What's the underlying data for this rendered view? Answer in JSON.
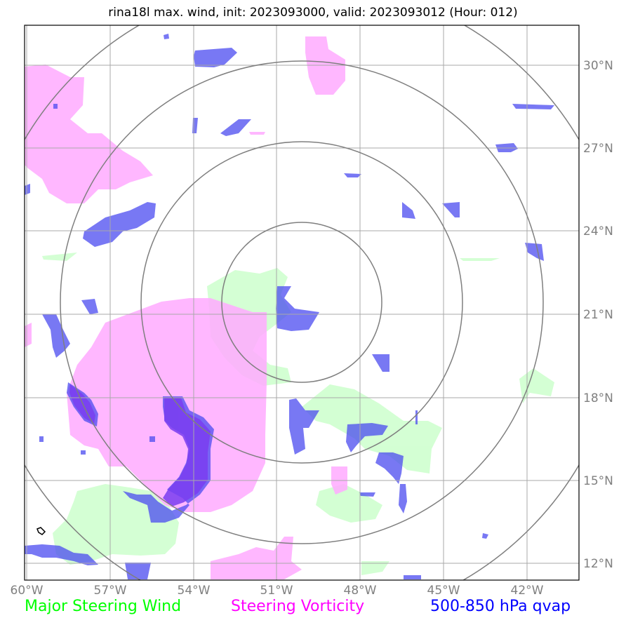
{
  "title": "rina18l max. wind, init: 2023093000, valid: 2023093012 (Hour: 012)",
  "legend": {
    "green": {
      "label": "Major Steering Wind",
      "color": "#00ff00"
    },
    "magenta": {
      "label": "Steering Vorticity",
      "color": "#ff00ff"
    },
    "blue": {
      "label": "500-850 hPa qvap",
      "color": "#0000ff"
    }
  },
  "map": {
    "lon_ticks": [
      "60°W",
      "57°W",
      "54°W",
      "51°W",
      "48°W",
      "45°W",
      "42°W"
    ],
    "lat_ticks": [
      "30°N",
      "27°N",
      "24°N",
      "21°N",
      "18°N",
      "15°N",
      "12°N"
    ],
    "lon_range": [
      -60,
      -40.3
    ],
    "lat_range": [
      11.3,
      31.4
    ],
    "range_rings": 4,
    "center": {
      "lon": -50.1,
      "lat": 21.5
    },
    "colors": {
      "grid": "#a9a9a9",
      "rings": "#7f7f7f",
      "green_fill": "#ccffcc",
      "magenta_fill": "#ffaaff",
      "blue_fill": "#4b4bf0",
      "violet_fill": "#7a3df0"
    }
  }
}
